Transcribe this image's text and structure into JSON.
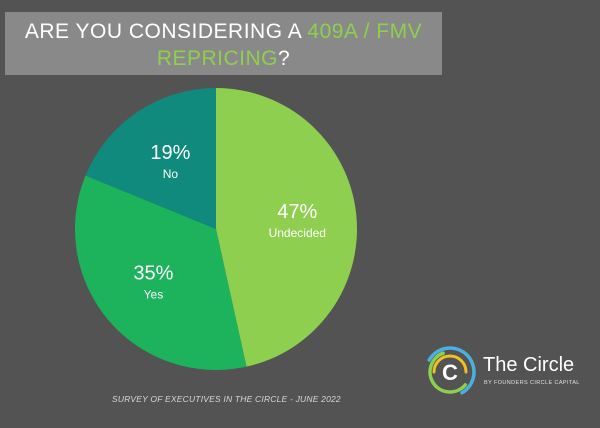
{
  "title": {
    "line1_prefix": "ARE YOU CONSIDERING A ",
    "line1_highlight": "409A / FMV",
    "line2_highlight": "REPRICING",
    "line2_suffix": "?"
  },
  "chart_data": {
    "type": "pie",
    "slices": [
      {
        "label": "Undecided",
        "value": 47,
        "display": "47%",
        "color": "#8fcf4f"
      },
      {
        "label": "Yes",
        "value": 35,
        "display": "35%",
        "color": "#1db35c"
      },
      {
        "label": "No",
        "value": 19,
        "display": "19%",
        "color": "#0f8a7d"
      }
    ]
  },
  "footer": "SURVEY OF EXECUTIVES IN THE CIRCLE - JUNE 2022",
  "logo": {
    "name": "The Circle",
    "subtitle": "BY FOUNDERS CIRCLE CAPITAL",
    "ring_colors": [
      "#4ab0e0",
      "#8fcf4f",
      "#f0c020"
    ]
  }
}
